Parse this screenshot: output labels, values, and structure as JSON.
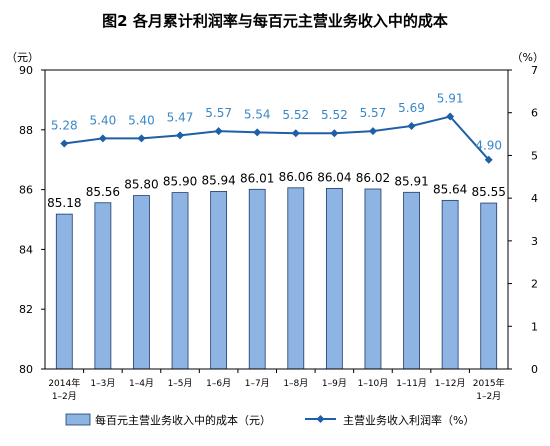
{
  "chart_data": {
    "type": "bar+line",
    "title": "图2  各月累计利润率与每百元主营业务收入中的成本",
    "categories": [
      [
        "2014年",
        "1–2月"
      ],
      [
        "1–3月"
      ],
      [
        "1–4月"
      ],
      [
        "1–5月"
      ],
      [
        "1–6月"
      ],
      [
        "1–7月"
      ],
      [
        "1–8月"
      ],
      [
        "1–9月"
      ],
      [
        "1–10月"
      ],
      [
        "1–11月"
      ],
      [
        "1–12月"
      ],
      [
        "2015年",
        "1–2月"
      ]
    ],
    "left_axis": {
      "unit": "（元）",
      "min": 80,
      "max": 90,
      "ticks": [
        80,
        82,
        84,
        86,
        88,
        90
      ]
    },
    "right_axis": {
      "unit": "（%）",
      "min": 0,
      "max": 7,
      "ticks": [
        0,
        1,
        2,
        3,
        4,
        5,
        6,
        7
      ]
    },
    "series": [
      {
        "name": "每百元主营业务收入中的成本（元）",
        "type": "bar",
        "axis": "left",
        "color": "#8db4e2",
        "values": [
          85.18,
          85.56,
          85.8,
          85.9,
          85.94,
          86.01,
          86.06,
          86.04,
          86.02,
          85.91,
          85.64,
          85.55
        ],
        "labels": [
          "85.18",
          "85.56",
          "85.80",
          "85.90",
          "85.94",
          "86.01",
          "86.06",
          "86.04",
          "86.02",
          "85.91",
          "85.64",
          "85.55"
        ]
      },
      {
        "name": "主营业务收入利润率（%）",
        "type": "line",
        "axis": "right",
        "color": "#1f5fa8",
        "label_color": "#3a87c8",
        "values": [
          5.28,
          5.4,
          5.4,
          5.47,
          5.57,
          5.54,
          5.52,
          5.52,
          5.57,
          5.69,
          5.91,
          4.9
        ],
        "labels": [
          "5.28",
          "5.40",
          "5.40",
          "5.47",
          "5.57",
          "5.54",
          "5.52",
          "5.52",
          "5.57",
          "5.69",
          "5.91",
          "4.90"
        ]
      }
    ],
    "legend_position": "bottom"
  }
}
